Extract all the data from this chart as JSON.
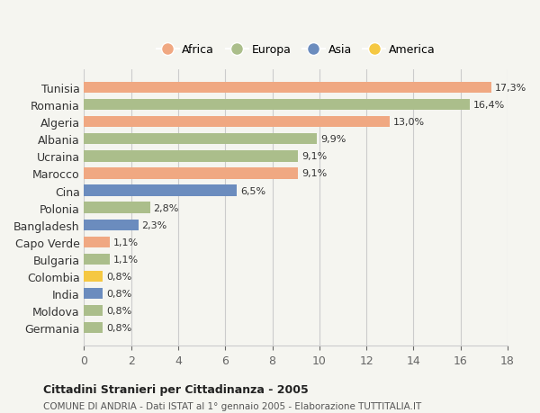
{
  "countries": [
    "Tunisia",
    "Romania",
    "Algeria",
    "Albania",
    "Ucraina",
    "Marocco",
    "Cina",
    "Polonia",
    "Bangladesh",
    "Capo Verde",
    "Bulgaria",
    "Colombia",
    "India",
    "Moldova",
    "Germania"
  ],
  "values": [
    17.3,
    16.4,
    13.0,
    9.9,
    9.1,
    9.1,
    6.5,
    2.8,
    2.3,
    1.1,
    1.1,
    0.8,
    0.8,
    0.8,
    0.8
  ],
  "labels": [
    "17,3%",
    "16,4%",
    "13,0%",
    "9,9%",
    "9,1%",
    "9,1%",
    "6,5%",
    "2,8%",
    "2,3%",
    "1,1%",
    "1,1%",
    "0,8%",
    "0,8%",
    "0,8%",
    "0,8%"
  ],
  "continents": [
    "Africa",
    "Europa",
    "Africa",
    "Europa",
    "Europa",
    "Africa",
    "Asia",
    "Europa",
    "Asia",
    "Africa",
    "Europa",
    "America",
    "Asia",
    "Europa",
    "Europa"
  ],
  "continent_colors": {
    "Africa": "#F0A882",
    "Europa": "#ABBE8B",
    "Asia": "#6B8CBE",
    "America": "#F5C842"
  },
  "legend_order": [
    "Africa",
    "Europa",
    "Asia",
    "America"
  ],
  "xlim": [
    0,
    18
  ],
  "xticks": [
    0,
    2,
    4,
    6,
    8,
    10,
    12,
    14,
    16,
    18
  ],
  "title": "Cittadini Stranieri per Cittadinanza - 2005",
  "subtitle": "COMUNE DI ANDRIA - Dati ISTAT al 1° gennaio 2005 - Elaborazione TUTTITALIA.IT",
  "background_color": "#f5f5f0",
  "bar_height": 0.65,
  "grid_color": "#cccccc"
}
